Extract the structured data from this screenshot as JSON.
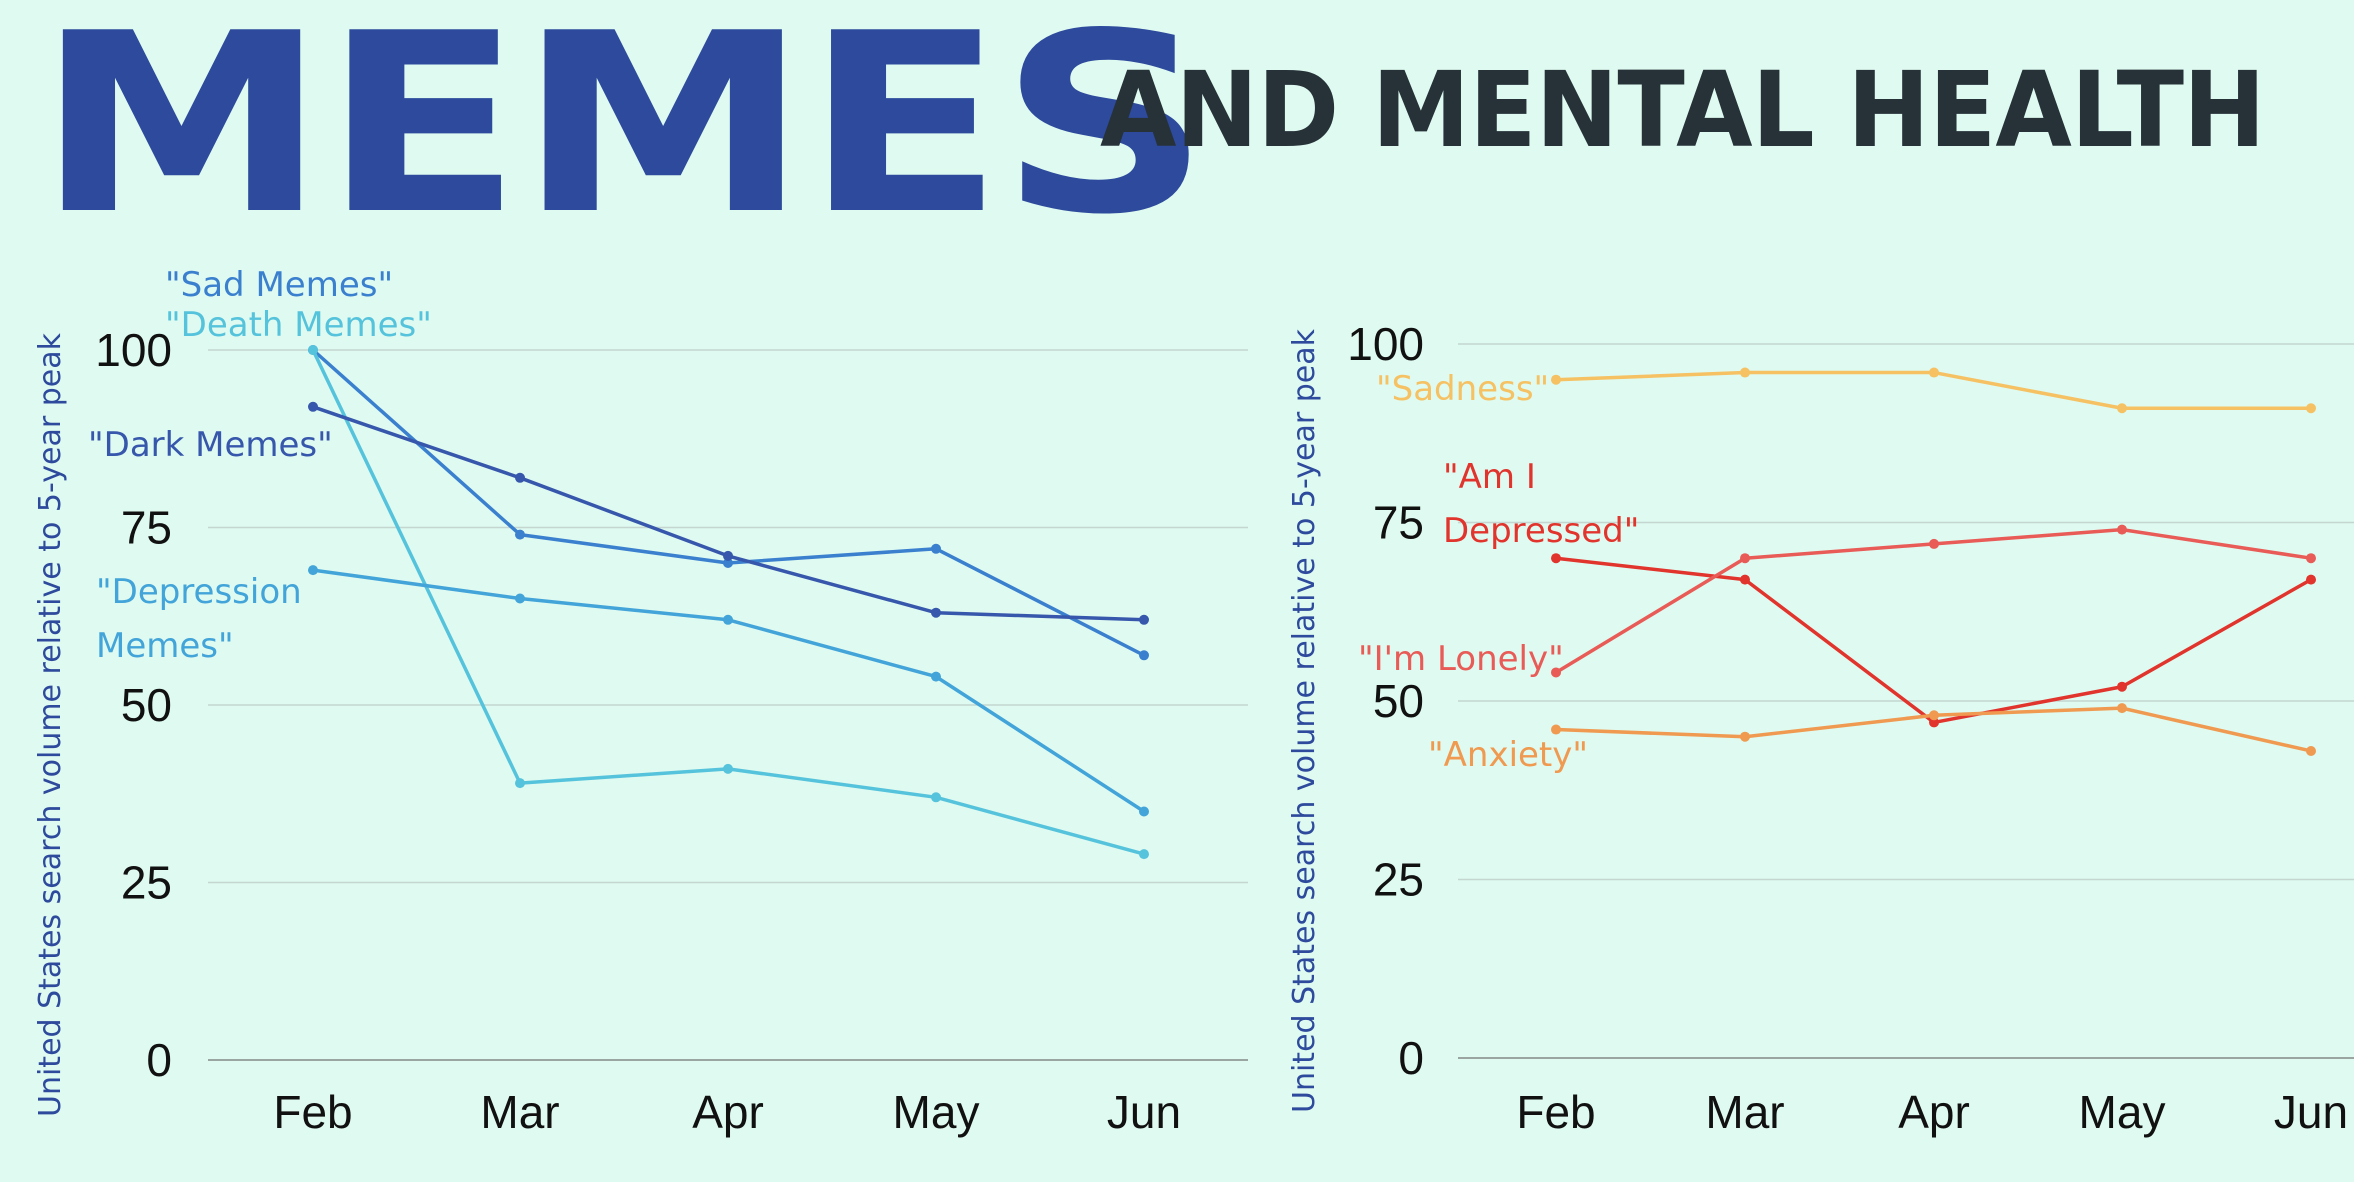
{
  "title": {
    "main": "MEMES",
    "sub": "AND MENTAL HEALTH"
  },
  "chart_data": [
    {
      "type": "line",
      "categories": [
        "Feb",
        "Mar",
        "Apr",
        "May",
        "Jun"
      ],
      "ylabel": "United States search volume relative to 5-year peak",
      "ylim": [
        0,
        100
      ],
      "yticks": [
        0,
        25,
        50,
        75,
        100
      ],
      "grid": true,
      "series": [
        {
          "name": "\"Sad Memes\"",
          "label_lines": [
            "\"Sad Memes\""
          ],
          "color": "#3a80cf",
          "values": [
            100,
            74,
            70,
            72,
            57
          ]
        },
        {
          "name": "\"Death Memes\"",
          "label_lines": [
            "\"Death Memes\""
          ],
          "color": "#56c3dc",
          "values": [
            100,
            39,
            41,
            37,
            29
          ]
        },
        {
          "name": "\"Dark Memes\"",
          "label_lines": [
            "\"Dark Memes\""
          ],
          "color": "#3657ac",
          "values": [
            92,
            82,
            71,
            63,
            62
          ]
        },
        {
          "name": "\"Depression Memes\"",
          "label_lines": [
            "\"Depression",
            "Memes\""
          ],
          "color": "#42a4d9",
          "values": [
            69,
            65,
            62,
            54,
            35
          ]
        }
      ]
    },
    {
      "type": "line",
      "categories": [
        "Feb",
        "Mar",
        "Apr",
        "May",
        "Jun"
      ],
      "ylabel": "United States search volume relative to 5-year peak",
      "ylim": [
        0,
        100
      ],
      "yticks": [
        0,
        25,
        50,
        75,
        100
      ],
      "grid": true,
      "series": [
        {
          "name": "\"Sadness\"",
          "label_lines": [
            "\"Sadness\""
          ],
          "color": "#f5c163",
          "values": [
            95,
            96,
            96,
            91,
            91
          ]
        },
        {
          "name": "\"Am I Depressed\"",
          "label_lines": [
            "\"Am I",
            "Depressed\""
          ],
          "color": "#e1342d",
          "values": [
            70,
            67,
            47,
            52,
            67
          ]
        },
        {
          "name": "\"I'm Lonely\"",
          "label_lines": [
            "\"I'm Lonely\""
          ],
          "color": "#e85b57",
          "values": [
            54,
            70,
            72,
            74,
            70
          ]
        },
        {
          "name": "\"Anxiety\"",
          "label_lines": [
            "\"Anxiety\""
          ],
          "color": "#ef9a50",
          "values": [
            46,
            45,
            48,
            49,
            43
          ]
        }
      ]
    }
  ]
}
